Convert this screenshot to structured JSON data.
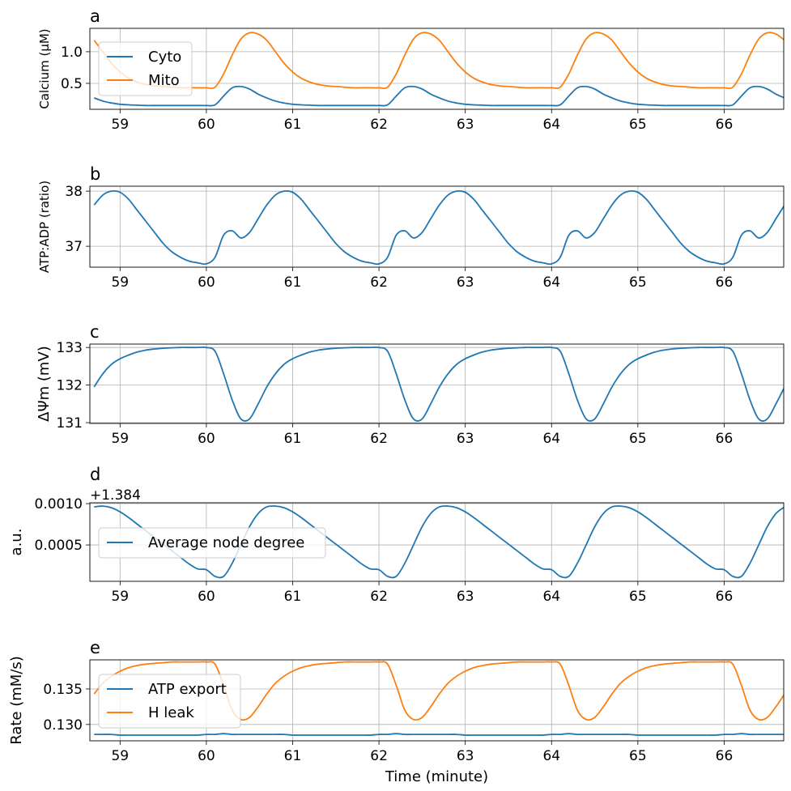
{
  "chart_data": [
    {
      "type": "line",
      "panel": "a",
      "title": "a",
      "ylabel": "Calcium (μM)",
      "xlabel": "",
      "xlim": [
        58.65,
        66.69
      ],
      "ylim": [
        0.09,
        1.37
      ],
      "grid": true,
      "legend": "upper left",
      "xticks": [
        "59",
        "60",
        "61",
        "62",
        "63",
        "64",
        "65",
        "66"
      ],
      "yticks": [
        "0.5",
        "1.0"
      ],
      "series": [
        {
          "name": "Cyto",
          "color": "#1f77b4",
          "values": [
            0.27,
            0.22,
            0.19,
            0.17,
            0.16,
            0.155,
            0.15,
            0.15,
            0.15,
            0.15,
            0.15,
            0.15,
            0.15,
            0.15,
            0.16,
            0.3,
            0.43,
            0.45,
            0.41,
            0.33,
            0.27,
            0.22,
            0.19,
            0.17,
            0.16,
            0.155,
            0.15,
            0.15,
            0.15,
            0.15,
            0.15,
            0.15,
            0.15,
            0.15,
            0.16,
            0.3,
            0.43,
            0.45,
            0.41,
            0.33,
            0.27,
            0.22,
            0.19,
            0.17,
            0.16,
            0.155,
            0.15,
            0.15,
            0.15,
            0.15,
            0.15,
            0.15,
            0.15,
            0.15,
            0.16,
            0.3,
            0.43,
            0.45,
            0.41,
            0.33,
            0.27,
            0.22,
            0.19,
            0.17,
            0.16,
            0.155,
            0.15,
            0.15,
            0.15,
            0.15,
            0.15,
            0.15,
            0.15,
            0.15,
            0.16,
            0.3,
            0.43,
            0.45,
            0.41,
            0.33,
            0.27
          ]
        },
        {
          "name": "Mito",
          "color": "#ff7f0e",
          "values": [
            1.18,
            1.0,
            0.82,
            0.68,
            0.58,
            0.52,
            0.48,
            0.46,
            0.45,
            0.44,
            0.43,
            0.43,
            0.43,
            0.43,
            0.44,
            0.65,
            0.95,
            1.2,
            1.3,
            1.28,
            1.18,
            1.0,
            0.82,
            0.68,
            0.58,
            0.52,
            0.48,
            0.46,
            0.45,
            0.44,
            0.43,
            0.43,
            0.43,
            0.43,
            0.44,
            0.65,
            0.95,
            1.2,
            1.3,
            1.28,
            1.18,
            1.0,
            0.82,
            0.68,
            0.58,
            0.52,
            0.48,
            0.46,
            0.45,
            0.44,
            0.43,
            0.43,
            0.43,
            0.43,
            0.44,
            0.65,
            0.95,
            1.2,
            1.3,
            1.28,
            1.18,
            1.0,
            0.82,
            0.68,
            0.58,
            0.52,
            0.48,
            0.46,
            0.45,
            0.44,
            0.43,
            0.43,
            0.43,
            0.43,
            0.44,
            0.65,
            0.95,
            1.2,
            1.3,
            1.28,
            1.18
          ]
        }
      ]
    },
    {
      "type": "line",
      "panel": "b",
      "title": "b",
      "ylabel": "ATP:ADP (ratio)",
      "xlabel": "",
      "xlim": [
        58.65,
        66.69
      ],
      "ylim": [
        36.62,
        38.09
      ],
      "grid": true,
      "xticks": [
        "59",
        "60",
        "61",
        "62",
        "63",
        "64",
        "65",
        "66"
      ],
      "yticks": [
        "37",
        "38"
      ],
      "series": [
        {
          "color": "#1f77b4",
          "values": [
            37.75,
            37.93,
            38.0,
            37.98,
            37.85,
            37.65,
            37.45,
            37.25,
            37.05,
            36.9,
            36.8,
            36.73,
            36.7,
            36.68,
            36.8,
            37.2,
            37.28,
            37.15,
            37.25,
            37.5,
            37.75,
            37.93,
            38.0,
            37.98,
            37.85,
            37.65,
            37.45,
            37.25,
            37.05,
            36.9,
            36.8,
            36.73,
            36.7,
            36.68,
            36.8,
            37.2,
            37.28,
            37.15,
            37.25,
            37.5,
            37.75,
            37.93,
            38.0,
            37.98,
            37.85,
            37.65,
            37.45,
            37.25,
            37.05,
            36.9,
            36.8,
            36.73,
            36.7,
            36.68,
            36.8,
            37.2,
            37.28,
            37.15,
            37.25,
            37.5,
            37.75,
            37.93,
            38.0,
            37.98,
            37.85,
            37.65,
            37.45,
            37.25,
            37.05,
            36.9,
            36.8,
            36.73,
            36.7,
            36.68,
            36.8,
            37.2,
            37.28,
            37.15,
            37.25,
            37.5,
            37.75
          ]
        }
      ]
    },
    {
      "type": "line",
      "panel": "c",
      "title": "c",
      "ylabel": "ΔΨm (mV)",
      "xlabel": "",
      "xlim": [
        58.65,
        66.69
      ],
      "ylim": [
        130.98,
        133.09
      ],
      "grid": true,
      "xticks": [
        "59",
        "60",
        "61",
        "62",
        "63",
        "64",
        "65",
        "66"
      ],
      "yticks": [
        "131",
        "132",
        "133"
      ],
      "series": [
        {
          "color": "#1f77b4",
          "values": [
            131.95,
            132.3,
            132.55,
            132.7,
            132.8,
            132.88,
            132.93,
            132.96,
            132.98,
            132.99,
            133.0,
            133.0,
            133.0,
            133.0,
            132.9,
            132.3,
            131.6,
            131.1,
            131.1,
            131.5,
            131.95,
            132.3,
            132.55,
            132.7,
            132.8,
            132.88,
            132.93,
            132.96,
            132.98,
            132.99,
            133.0,
            133.0,
            133.0,
            133.0,
            132.9,
            132.3,
            131.6,
            131.1,
            131.1,
            131.5,
            131.95,
            132.3,
            132.55,
            132.7,
            132.8,
            132.88,
            132.93,
            132.96,
            132.98,
            132.99,
            133.0,
            133.0,
            133.0,
            133.0,
            132.9,
            132.3,
            131.6,
            131.1,
            131.1,
            131.5,
            131.95,
            132.3,
            132.55,
            132.7,
            132.8,
            132.88,
            132.93,
            132.96,
            132.98,
            132.99,
            133.0,
            133.0,
            133.0,
            133.0,
            132.9,
            132.3,
            131.6,
            131.1,
            131.1,
            131.5,
            131.95
          ]
        }
      ]
    },
    {
      "type": "line",
      "panel": "d",
      "title": "d",
      "ylabel": "a.u.",
      "xlabel": "",
      "offset_text": "+1.384",
      "xlim": [
        58.65,
        66.69
      ],
      "ylim": [
        6e-05,
        0.00101
      ],
      "grid": true,
      "legend": "center left",
      "xticks": [
        "59",
        "60",
        "61",
        "62",
        "63",
        "64",
        "65",
        "66"
      ],
      "yticks": [
        "0.0005",
        "0.0010"
      ],
      "series": [
        {
          "name": "Average node degree",
          "color": "#1f77b4",
          "values": [
            0.00096,
            0.00097,
            0.00095,
            0.0009,
            0.00083,
            0.00075,
            0.00067,
            0.00059,
            0.00051,
            0.00043,
            0.00035,
            0.00027,
            0.00021,
            0.0002,
            0.00012,
            0.00012,
            0.00028,
            0.0005,
            0.00072,
            0.00088,
            0.00096,
            0.00097,
            0.00095,
            0.0009,
            0.00083,
            0.00075,
            0.00067,
            0.00059,
            0.00051,
            0.00043,
            0.00035,
            0.00027,
            0.00021,
            0.0002,
            0.00012,
            0.00012,
            0.00028,
            0.0005,
            0.00072,
            0.00088,
            0.00096,
            0.00097,
            0.00095,
            0.0009,
            0.00083,
            0.00075,
            0.00067,
            0.00059,
            0.00051,
            0.00043,
            0.00035,
            0.00027,
            0.00021,
            0.0002,
            0.00012,
            0.00012,
            0.00028,
            0.0005,
            0.00072,
            0.00088,
            0.00096,
            0.00097,
            0.00095,
            0.0009,
            0.00083,
            0.00075,
            0.00067,
            0.00059,
            0.00051,
            0.00043,
            0.00035,
            0.00027,
            0.00021,
            0.0002,
            0.00012,
            0.00012,
            0.00028,
            0.0005,
            0.00072,
            0.00088,
            0.00096
          ]
        }
      ]
    },
    {
      "type": "line",
      "panel": "e",
      "title": "e",
      "ylabel": "Rate (mM/s)",
      "xlabel": "Time (minute)",
      "xlim": [
        58.65,
        66.69
      ],
      "ylim": [
        0.1277,
        0.1391
      ],
      "grid": true,
      "legend": "lower left",
      "xticks": [
        "59",
        "60",
        "61",
        "62",
        "63",
        "64",
        "65",
        "66"
      ],
      "yticks": [
        "0.130",
        "0.135"
      ],
      "series": [
        {
          "name": "ATP export",
          "color": "#1f77b4",
          "values": [
            0.1286,
            0.1286,
            0.1286,
            0.1285,
            0.1285,
            0.1285,
            0.1285,
            0.1285,
            0.1285,
            0.1285,
            0.1285,
            0.1285,
            0.1285,
            0.1286,
            0.1286,
            0.1287,
            0.1286,
            0.1286,
            0.1286,
            0.1286,
            0.1286,
            0.1286,
            0.1286,
            0.1285,
            0.1285,
            0.1285,
            0.1285,
            0.1285,
            0.1285,
            0.1285,
            0.1285,
            0.1285,
            0.1285,
            0.1286,
            0.1286,
            0.1287,
            0.1286,
            0.1286,
            0.1286,
            0.1286,
            0.1286,
            0.1286,
            0.1286,
            0.1285,
            0.1285,
            0.1285,
            0.1285,
            0.1285,
            0.1285,
            0.1285,
            0.1285,
            0.1285,
            0.1285,
            0.1286,
            0.1286,
            0.1287,
            0.1286,
            0.1286,
            0.1286,
            0.1286,
            0.1286,
            0.1286,
            0.1286,
            0.1285,
            0.1285,
            0.1285,
            0.1285,
            0.1285,
            0.1285,
            0.1285,
            0.1285,
            0.1285,
            0.1285,
            0.1286,
            0.1286,
            0.1287,
            0.1286,
            0.1286,
            0.1286,
            0.1286,
            0.1286
          ]
        },
        {
          "name": "H leak",
          "color": "#ff7f0e",
          "values": [
            0.1343,
            0.1358,
            0.1368,
            0.1375,
            0.138,
            0.1383,
            0.1385,
            0.1386,
            0.1387,
            0.1388,
            0.1388,
            0.1388,
            0.1388,
            0.1388,
            0.1385,
            0.1355,
            0.132,
            0.1307,
            0.131,
            0.1325,
            0.1343,
            0.1358,
            0.1368,
            0.1375,
            0.138,
            0.1383,
            0.1385,
            0.1386,
            0.1387,
            0.1388,
            0.1388,
            0.1388,
            0.1388,
            0.1388,
            0.1385,
            0.1355,
            0.132,
            0.1307,
            0.131,
            0.1325,
            0.1343,
            0.1358,
            0.1368,
            0.1375,
            0.138,
            0.1383,
            0.1385,
            0.1386,
            0.1387,
            0.1388,
            0.1388,
            0.1388,
            0.1388,
            0.1388,
            0.1385,
            0.1355,
            0.132,
            0.1307,
            0.131,
            0.1325,
            0.1343,
            0.1358,
            0.1368,
            0.1375,
            0.138,
            0.1383,
            0.1385,
            0.1386,
            0.1387,
            0.1388,
            0.1388,
            0.1388,
            0.1388,
            0.1388,
            0.1385,
            0.1355,
            0.132,
            0.1307,
            0.131,
            0.1325,
            0.1343
          ]
        }
      ]
    }
  ],
  "x": [
    58.7,
    58.8,
    58.9,
    59.0,
    59.1,
    59.2,
    59.3,
    59.4,
    59.5,
    59.6,
    59.7,
    59.8,
    59.9,
    60.0,
    60.1,
    60.2,
    60.3,
    60.4,
    60.5,
    60.6,
    60.7,
    60.8,
    60.9,
    61.0,
    61.1,
    61.2,
    61.3,
    61.4,
    61.5,
    61.6,
    61.7,
    61.8,
    61.9,
    62.0,
    62.1,
    62.2,
    62.3,
    62.4,
    62.5,
    62.6,
    62.7,
    62.8,
    62.9,
    63.0,
    63.1,
    63.2,
    63.3,
    63.4,
    63.5,
    63.6,
    63.7,
    63.8,
    63.9,
    64.0,
    64.1,
    64.2,
    64.3,
    64.4,
    64.5,
    64.6,
    64.7,
    64.8,
    64.9,
    65.0,
    65.1,
    65.2,
    65.3,
    65.4,
    65.5,
    65.6,
    65.7,
    65.8,
    65.9,
    66.0,
    66.1,
    66.2,
    66.3,
    66.4,
    66.5,
    66.6,
    66.7
  ]
}
